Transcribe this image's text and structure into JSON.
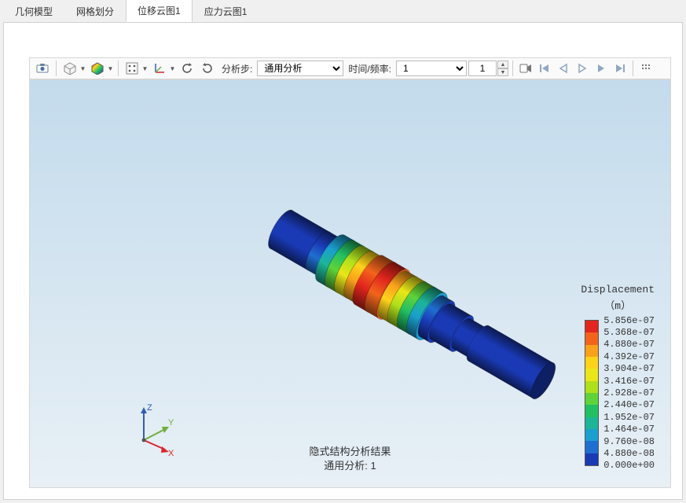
{
  "tabs": [
    {
      "label": "几何模型",
      "active": false
    },
    {
      "label": "网格划分",
      "active": false
    },
    {
      "label": "位移云图1",
      "active": true
    },
    {
      "label": "应力云图1",
      "active": false
    }
  ],
  "toolbar": {
    "analysis_step_label": "分析步:",
    "analysis_step_value": "通用分析",
    "time_freq_label": "时间/频率:",
    "time_freq_value": "1",
    "spin_value": "1"
  },
  "caption": {
    "line1": "隐式结构分析结果",
    "line2": "通用分析: 1"
  },
  "legend": {
    "title": "Displacement",
    "unit": "（m）",
    "labels": [
      "5.856e-07",
      "5.368e-07",
      "4.880e-07",
      "4.392e-07",
      "3.904e-07",
      "3.416e-07",
      "2.928e-07",
      "2.440e-07",
      "1.952e-07",
      "1.464e-07",
      "9.760e-08",
      "4.880e-08",
      "0.000e+00"
    ],
    "colors": [
      "#e2261d",
      "#f2641c",
      "#f9a11b",
      "#fdd31a",
      "#e9e619",
      "#aee01b",
      "#5fd33a",
      "#22c063",
      "#1db598",
      "#1a9fcf",
      "#1f6fd0",
      "#1a3ab5"
    ]
  },
  "axis": {
    "x_label": "X",
    "y_label": "Y",
    "z_label": "Z",
    "x_color": "#d9262b",
    "y_color": "#6fae3a",
    "z_color": "#2f5fb3"
  },
  "viewport": {
    "bg_top": "#c3dbec",
    "bg_bottom": "#e8f0f6"
  },
  "shaft": {
    "angle_deg": 30,
    "segments": [
      {
        "len": 55,
        "r": 28,
        "color_a": "#1a3ab5",
        "color_b": "#1a3ab5"
      },
      {
        "len": 18,
        "r": 28,
        "color_a": "#1a3ab5",
        "color_b": "#1f6fd0"
      },
      {
        "len": 14,
        "r": 34,
        "color_a": "#1a9fcf",
        "color_b": "#1db598"
      },
      {
        "len": 14,
        "r": 34,
        "color_a": "#22c063",
        "color_b": "#5fd33a"
      },
      {
        "len": 14,
        "r": 34,
        "color_a": "#aee01b",
        "color_b": "#e9e619"
      },
      {
        "len": 14,
        "r": 34,
        "color_a": "#fdd31a",
        "color_b": "#f9a11b"
      },
      {
        "len": 18,
        "r": 36,
        "color_a": "#f2641c",
        "color_b": "#e2261d"
      },
      {
        "len": 18,
        "r": 36,
        "color_a": "#e2261d",
        "color_b": "#f2641c"
      },
      {
        "len": 14,
        "r": 34,
        "color_a": "#f9a11b",
        "color_b": "#fdd31a"
      },
      {
        "len": 14,
        "r": 34,
        "color_a": "#e9e619",
        "color_b": "#aee01b"
      },
      {
        "len": 14,
        "r": 34,
        "color_a": "#5fd33a",
        "color_b": "#22c063"
      },
      {
        "len": 14,
        "r": 34,
        "color_a": "#1db598",
        "color_b": "#1a9fcf"
      },
      {
        "len": 14,
        "r": 30,
        "color_a": "#1f6fd0",
        "color_b": "#1a3ab5"
      },
      {
        "len": 30,
        "r": 26,
        "color_a": "#1a3ab5",
        "color_b": "#1a3ab5"
      },
      {
        "len": 25,
        "r": 22,
        "color_a": "#1a3ab5",
        "color_b": "#1a3ab5"
      },
      {
        "len": 95,
        "r": 26,
        "color_a": "#1a3ab5",
        "color_b": "#1a3ab5"
      }
    ]
  }
}
